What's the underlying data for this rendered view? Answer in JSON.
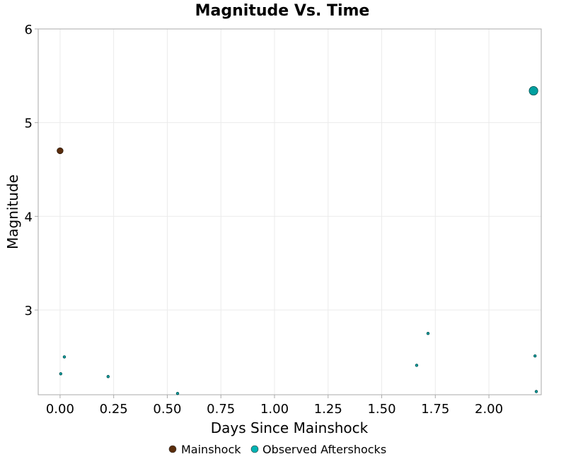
{
  "chart_data": {
    "type": "scatter",
    "title": "Magnitude Vs. Time",
    "xlabel": "Days Since Mainshock",
    "ylabel": "Magnitude",
    "xlim": [
      -0.102,
      2.244
    ],
    "ylim": [
      2.096,
      6.0
    ],
    "xticks": [
      "0.00",
      "0.25",
      "0.50",
      "0.75",
      "1.00",
      "1.25",
      "1.50",
      "1.75",
      "2.00"
    ],
    "yticks": [
      "3",
      "4",
      "5",
      "6"
    ],
    "grid": true,
    "legend_placement": "bottom",
    "series": [
      {
        "name": "Mainshock",
        "color": "#5a2d0c",
        "points": [
          {
            "x": 0.0,
            "y": 4.7
          }
        ]
      },
      {
        "name": "Observed Aftershocks",
        "color": "#00a8a8",
        "points": [
          {
            "x": 2.208,
            "y": 5.34
          },
          {
            "x": 0.02,
            "y": 2.5
          },
          {
            "x": 0.003,
            "y": 2.32
          },
          {
            "x": 0.224,
            "y": 2.29
          },
          {
            "x": 0.548,
            "y": 2.11
          },
          {
            "x": 1.663,
            "y": 2.41
          },
          {
            "x": 1.716,
            "y": 2.75
          },
          {
            "x": 2.215,
            "y": 2.51
          },
          {
            "x": 2.221,
            "y": 2.13
          }
        ]
      }
    ]
  }
}
